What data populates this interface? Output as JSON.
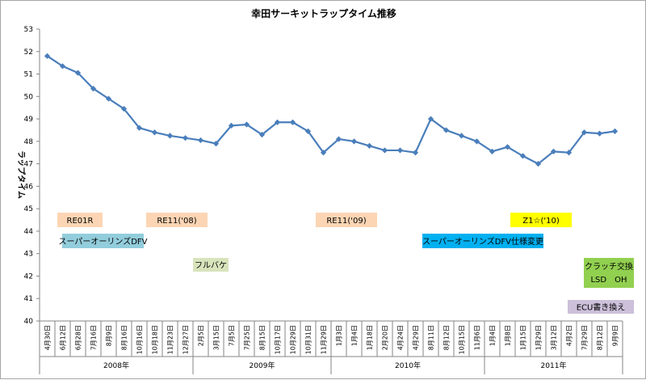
{
  "chart_data": {
    "type": "line",
    "title": "幸田サーキットラップタイム推移",
    "ylabel": "ラップタイム",
    "xlabel": "",
    "ylim": [
      40,
      53
    ],
    "ystep": 1,
    "grid": false,
    "legend": "none",
    "line_color": "#4a7ebb",
    "x": [
      "4月30日",
      "6月12日",
      "6月28日",
      "7月16日",
      "8月9日",
      "8月16日",
      "10月16日",
      "10月18日",
      "11月23日",
      "12月27日",
      "2月5日",
      "3月15日",
      "7月5日",
      "7月25日",
      "8月15日",
      "10月17日",
      "10月29日",
      "10月31日",
      "11月29日",
      "1月3日",
      "1月4日",
      "1月18日",
      "2月20日",
      "4月24日",
      "4月29日",
      "8月11日",
      "8月12日",
      "10月15日",
      "11月6日",
      "1月4日",
      "1月8日",
      "1月15日",
      "1月29日",
      "3月12日",
      "4月2日",
      "7月29日",
      "8月12日",
      "9月9日"
    ],
    "series": [
      {
        "values": [
          51.8,
          51.35,
          51.05,
          50.35,
          49.9,
          49.45,
          48.6,
          48.4,
          48.25,
          48.15,
          48.05,
          47.9,
          48.7,
          48.75,
          48.3,
          48.85,
          48.85,
          48.45,
          47.5,
          48.1,
          48.0,
          47.8,
          47.6,
          47.6,
          47.5,
          49.0,
          48.5,
          48.25,
          48.0,
          47.55,
          47.75,
          47.35,
          47.0,
          47.55,
          47.5,
          48.4,
          48.35,
          48.45
        ]
      }
    ],
    "years": [
      {
        "label": "2008年",
        "start": 0,
        "end": 9
      },
      {
        "label": "2009年",
        "start": 10,
        "end": 18
      },
      {
        "label": "2010年",
        "start": 19,
        "end": 28
      },
      {
        "label": "2011年",
        "start": 29,
        "end": 37
      }
    ],
    "annotations": [
      {
        "id": "re01r",
        "text": "RE01R",
        "bg": "#fcd5b4"
      },
      {
        "id": "super-dfv",
        "text": "スーパーオーリンズDFV",
        "bg": "#92cddc"
      },
      {
        "id": "re11-08",
        "text": "RE11('08)",
        "bg": "#fcd5b4"
      },
      {
        "id": "full-bake",
        "text": "フルバケ",
        "bg": "#d8e4bc"
      },
      {
        "id": "re11-09",
        "text": "RE11('09)",
        "bg": "#fcd5b4"
      },
      {
        "id": "super-dfv-change",
        "text": "スーパーオーリンズDFV仕様変更",
        "bg": "#00b0f0"
      },
      {
        "id": "z1-10",
        "text": "Z1☆('10)",
        "bg": "#ffff00"
      },
      {
        "id": "clutch",
        "text": "クラッチ交換",
        "text2": "LSD　OH",
        "bg": "#92d050"
      },
      {
        "id": "ecu",
        "text": "ECU書き換え",
        "bg": "#ccc0da"
      }
    ]
  }
}
